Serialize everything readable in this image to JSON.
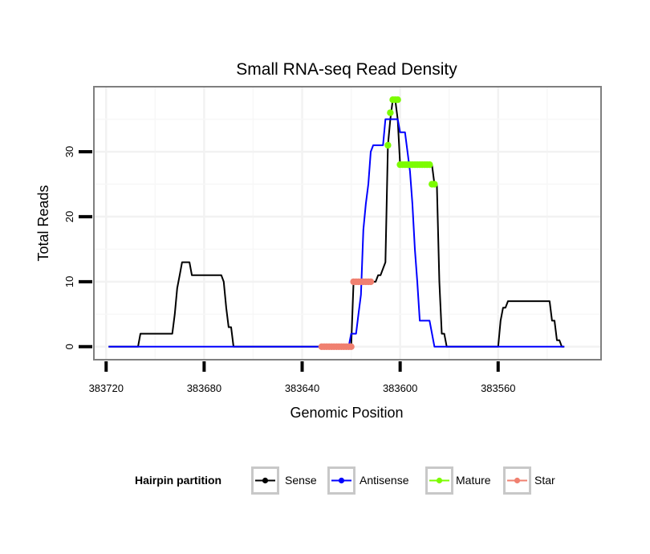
{
  "chart_data": {
    "type": "line",
    "title": "Small RNA-seq Read Density",
    "xlabel": "Genomic Position",
    "ylabel": "Total Reads",
    "xlim": [
      383725,
      383518
    ],
    "ylim": [
      -2,
      40
    ],
    "x_reversed": true,
    "xticks": [
      383720,
      383680,
      383640,
      383600,
      383560
    ],
    "xtick_labels": [
      "383720",
      "383680",
      "383640",
      "383600",
      "383560"
    ],
    "yticks": [
      0,
      10,
      20,
      30
    ],
    "ytick_labels": [
      "0",
      "10",
      "20",
      "30"
    ],
    "grid": true,
    "legend": {
      "title": "Hairpin partition",
      "position": "bottom",
      "entries": [
        {
          "label": "Sense",
          "color": "#000000"
        },
        {
          "label": "Antisense",
          "color": "#0000ff"
        },
        {
          "label": "Mature",
          "color": "#7cfc00"
        },
        {
          "label": "Star",
          "color": "#f08070"
        }
      ]
    },
    "series": [
      {
        "name": "Sense",
        "color": "#000000",
        "style": "line",
        "x": [
          383719,
          383707,
          383706,
          383694,
          383693,
          383692,
          383691,
          383690,
          383689,
          383686,
          383685,
          383684,
          383683,
          383673,
          383672,
          383671,
          383670,
          383669,
          383668,
          383667,
          383641,
          383620,
          383619,
          383618,
          383610,
          383609,
          383608,
          383606,
          383605,
          383604,
          383603,
          383602,
          383601,
          383600,
          383599,
          383588,
          383587,
          383586,
          383585,
          383584,
          383583,
          383582,
          383581,
          383560,
          383559,
          383558,
          383557,
          383556,
          383540,
          383539,
          383538,
          383537,
          383536,
          383535,
          383534,
          383533,
          383533
        ],
        "y": [
          0,
          0,
          2,
          2,
          2,
          5,
          9,
          11,
          13,
          13,
          11,
          11,
          11,
          11,
          10,
          6,
          3,
          3,
          0,
          0,
          0,
          0,
          10,
          10,
          10,
          11,
          11,
          13,
          31,
          35,
          38,
          38,
          35,
          28,
          28,
          28,
          28,
          25,
          25,
          10,
          2,
          2,
          0,
          0,
          4,
          6,
          6,
          7,
          7,
          7,
          4,
          4,
          1,
          1,
          0,
          0,
          0
        ]
      },
      {
        "name": "Antisense",
        "color": "#0000ff",
        "style": "line",
        "x": [
          383719,
          383621,
          383620,
          383618,
          383617,
          383616,
          383615,
          383614,
          383613,
          383612,
          383611,
          383610,
          383607,
          383606,
          383601,
          383600,
          383598,
          383597,
          383596,
          383595,
          383594,
          383593,
          383592,
          383591,
          383590,
          383589,
          383588,
          383586,
          383585,
          383533
        ],
        "y": [
          0,
          0,
          2,
          2,
          5,
          8,
          18,
          22,
          25,
          30,
          31,
          31,
          31,
          35,
          35,
          33,
          33,
          30,
          27,
          22,
          15,
          10,
          4,
          4,
          4,
          4,
          4,
          0,
          0,
          0
        ]
      },
      {
        "name": "Mature",
        "color": "#7cfc00",
        "style": "points",
        "x": [
          383605,
          383604,
          383603,
          383602,
          383601,
          383600,
          383599,
          383598,
          383597,
          383596,
          383595,
          383594,
          383593,
          383592,
          383591,
          383590,
          383589,
          383588,
          383587,
          383586
        ],
        "y": [
          31,
          36,
          38,
          38,
          38,
          28,
          28,
          28,
          28,
          28,
          28,
          28,
          28,
          28,
          28,
          28,
          28,
          28,
          25,
          25
        ]
      },
      {
        "name": "Star",
        "color": "#f08070",
        "style": "points",
        "x": [
          383632,
          383631,
          383630,
          383629,
          383628,
          383627,
          383626,
          383625,
          383624,
          383623,
          383622,
          383621,
          383620,
          383619,
          383618,
          383617,
          383616,
          383615,
          383614,
          383613,
          383612
        ],
        "y": [
          0,
          0,
          0,
          0,
          0,
          0,
          0,
          0,
          0,
          0,
          0,
          0,
          0,
          10,
          10,
          10,
          10,
          10,
          10,
          10,
          10
        ]
      }
    ]
  }
}
